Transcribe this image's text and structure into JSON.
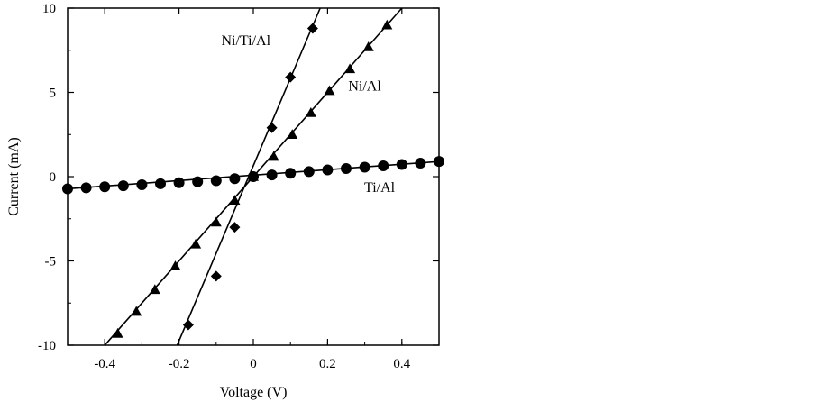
{
  "chart_data": {
    "type": "scatter",
    "title": "",
    "xlabel": "Voltage (V)",
    "ylabel": "Current (mA)",
    "xlim": [
      -0.5,
      0.5
    ],
    "ylim": [
      -10,
      10
    ],
    "xticks": [
      -0.4,
      -0.2,
      0,
      0.2,
      0.4
    ],
    "xtick_labels": [
      "-0.4",
      "-0.2",
      "0",
      "0.2",
      "0.4"
    ],
    "yticks": [
      -10,
      -5,
      0,
      5,
      10
    ],
    "ytick_labels": [
      "-10",
      "-5",
      "0",
      "5",
      "10"
    ],
    "grid": false,
    "series": [
      {
        "name": "Ni/Ti/Al",
        "marker": "diamond",
        "x": [
          -0.175,
          -0.1,
          -0.05,
          0.0,
          0.05,
          0.1,
          0.16
        ],
        "y": [
          -8.8,
          -5.9,
          -3.0,
          0.0,
          2.9,
          5.9,
          8.8
        ],
        "line": {
          "x": [
            -0.205,
            0.18
          ],
          "y": [
            -10,
            10
          ]
        }
      },
      {
        "name": "Ni/Al",
        "marker": "triangle",
        "x": [
          -0.365,
          -0.315,
          -0.265,
          -0.21,
          -0.155,
          -0.1,
          -0.05,
          0.0,
          0.055,
          0.105,
          0.155,
          0.205,
          0.26,
          0.31,
          0.36
        ],
        "y": [
          -9.3,
          -8.0,
          -6.7,
          -5.3,
          -4.0,
          -2.7,
          -1.4,
          0.0,
          1.2,
          2.5,
          3.8,
          5.1,
          6.4,
          7.7,
          9.0
        ],
        "line": {
          "x": [
            -0.4,
            0.4
          ],
          "y": [
            -10,
            10
          ]
        }
      },
      {
        "name": "Ti/Al",
        "marker": "circle",
        "x": [
          -0.5,
          -0.45,
          -0.4,
          -0.35,
          -0.3,
          -0.25,
          -0.2,
          -0.15,
          -0.1,
          -0.05,
          0.0,
          0.05,
          0.1,
          0.15,
          0.2,
          0.25,
          0.3,
          0.35,
          0.4,
          0.45,
          0.5
        ],
        "y": [
          -0.72,
          -0.66,
          -0.6,
          -0.54,
          -0.48,
          -0.42,
          -0.36,
          -0.3,
          -0.24,
          -0.12,
          0.0,
          0.1,
          0.2,
          0.3,
          0.4,
          0.48,
          0.56,
          0.64,
          0.72,
          0.8,
          0.9
        ],
        "line": {
          "x": [
            -0.5,
            0.5
          ],
          "y": [
            -0.72,
            0.9
          ]
        }
      }
    ],
    "annotations": [
      {
        "text": "Ni/Ti/Al",
        "x": -0.02,
        "y": 7.8
      },
      {
        "text": "Ni/Al",
        "x": 0.3,
        "y": 5.1
      },
      {
        "text": "Ti/Al",
        "x": 0.34,
        "y": -0.9
      }
    ]
  }
}
